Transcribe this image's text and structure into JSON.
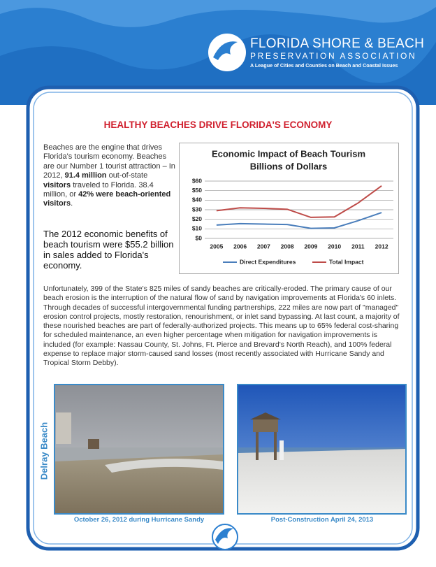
{
  "header": {
    "org_line1": "FLORIDA SHORE & BEACH",
    "org_line2": "PRESERVATION ASSOCIATION",
    "tagline": "A League of Cities and Counties on Beach and Coastal Issues"
  },
  "heading": "HEALTHY BEACHES DRIVE FLORIDA'S ECONOMY",
  "intro": {
    "runs": [
      "Beaches are the engine that drives Florida's tourism economy. Beaches are our Number 1 tourist attraction – In 2012, ",
      "91.4 million",
      " out-of-state ",
      "visitors",
      " traveled to Florida.  38.4 million, or ",
      "42%",
      " ",
      "were beach-oriented visitors",
      "."
    ]
  },
  "callout": "The 2012 economic benefits of beach tourism were $55.2 billion in sales added to Florida's economy.",
  "chart_data": {
    "type": "line",
    "title": "Economic Impact of Beach Tourism",
    "subtitle": "Billions of Dollars",
    "categories": [
      "2005",
      "2006",
      "2007",
      "2008",
      "2009",
      "2010",
      "2011",
      "2012"
    ],
    "series": [
      {
        "name": "Direct Expenditures",
        "color": "#4a7ebb",
        "values": [
          14,
          15.5,
          15,
          14.5,
          10.5,
          11,
          18.5,
          27
        ]
      },
      {
        "name": "Total Impact",
        "color": "#be4b48",
        "values": [
          29,
          32,
          31.5,
          30.5,
          22,
          22.5,
          37,
          55
        ]
      }
    ],
    "ylim": [
      0,
      60
    ],
    "yticks": [
      {
        "value": 0,
        "label": "$0"
      },
      {
        "value": 10,
        "label": "$10"
      },
      {
        "value": 20,
        "label": "$20"
      },
      {
        "value": 30,
        "label": "$30"
      },
      {
        "value": 40,
        "label": "$40"
      },
      {
        "value": 50,
        "label": "$50"
      },
      {
        "value": 60,
        "label": "$60"
      }
    ],
    "grid": true,
    "legend": "bottom"
  },
  "body": "Unfortunately, 399 of the State's 825 miles of sandy beaches are critically-eroded.  The primary cause of our beach erosion is the interruption of the natural flow of sand by navigation improvements at Florida's 60 inlets.  Through decades of successful intergovernmental funding partnerships, 222 miles are now part of \"managed\" erosion control projects, mostly restoration, renourishment, or inlet sand bypassing. At last count, a majority of these nourished beaches are part of federally-authorized projects.  This means up to 65% federal cost-sharing for scheduled maintenance, an even higher percentage when mitigation for navigation improvements is included (for example: Nassau County, St. Johns, Ft. Pierce and Brevard's North Reach), and 100% federal expense to replace major storm-caused sand losses (most recently associated with Hurricane Sandy and Tropical Storm Debby).",
  "photos": {
    "side_label": "Delray Beach",
    "captions": [
      "October 26, 2012 during Hurricane Sandy",
      "Post-Construction April 24, 2013"
    ]
  }
}
